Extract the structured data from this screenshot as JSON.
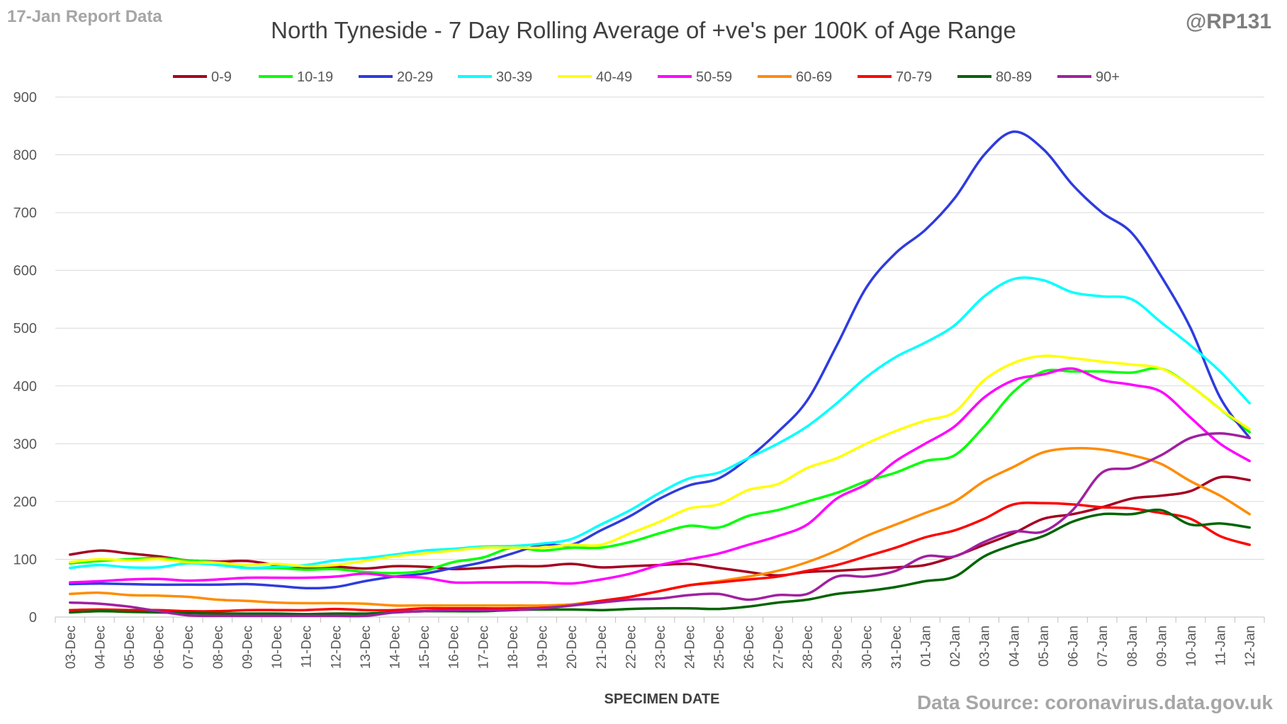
{
  "header": {
    "report_label": "17-Jan Report Data",
    "handle": "@RP131",
    "source": "Data Source: coronavirus.data.gov.uk"
  },
  "chart_data": {
    "type": "line",
    "title": "North Tyneside - 7 Day Rolling Average of +ve's per 100K of Age Range",
    "xlabel": "SPECIMEN DATE",
    "ylabel": "",
    "ylim": [
      0,
      900
    ],
    "yticks": [
      0,
      100,
      200,
      300,
      400,
      500,
      600,
      700,
      800,
      900
    ],
    "grid": "horizontal",
    "legend_position": "top",
    "categories": [
      "03-Dec",
      "04-Dec",
      "05-Dec",
      "06-Dec",
      "07-Dec",
      "08-Dec",
      "09-Dec",
      "10-Dec",
      "11-Dec",
      "12-Dec",
      "13-Dec",
      "14-Dec",
      "15-Dec",
      "16-Dec",
      "17-Dec",
      "18-Dec",
      "19-Dec",
      "20-Dec",
      "21-Dec",
      "22-Dec",
      "23-Dec",
      "24-Dec",
      "25-Dec",
      "26-Dec",
      "27-Dec",
      "28-Dec",
      "29-Dec",
      "30-Dec",
      "31-Dec",
      "01-Jan",
      "02-Jan",
      "03-Jan",
      "04-Jan",
      "05-Jan",
      "06-Jan",
      "07-Jan",
      "08-Jan",
      "09-Jan",
      "10-Jan",
      "11-Jan",
      "12-Jan"
    ],
    "series": [
      {
        "name": "0-9",
        "color": "#a50021",
        "values": [
          108,
          115,
          110,
          105,
          98,
          96,
          97,
          90,
          85,
          87,
          84,
          88,
          87,
          83,
          85,
          88,
          88,
          92,
          86,
          88,
          90,
          92,
          85,
          78,
          72,
          78,
          80,
          83,
          86,
          90,
          105,
          125,
          145,
          170,
          178,
          190,
          205,
          210,
          218,
          242,
          237
        ]
      },
      {
        "name": "10-19",
        "color": "#00ff00",
        "values": [
          93,
          97,
          100,
          102,
          98,
          94,
          85,
          85,
          82,
          83,
          78,
          76,
          80,
          95,
          103,
          120,
          115,
          120,
          120,
          130,
          145,
          158,
          155,
          175,
          185,
          200,
          215,
          235,
          250,
          270,
          280,
          330,
          390,
          425,
          425,
          425,
          423,
          430,
          400,
          360,
          320
        ]
      },
      {
        "name": "20-29",
        "color": "#2e3bde",
        "values": [
          57,
          58,
          57,
          56,
          56,
          56,
          57,
          54,
          50,
          52,
          62,
          70,
          75,
          85,
          95,
          110,
          125,
          125,
          150,
          175,
          205,
          228,
          240,
          275,
          320,
          375,
          470,
          570,
          630,
          670,
          725,
          800,
          840,
          810,
          748,
          700,
          665,
          590,
          500,
          380,
          310
        ]
      },
      {
        "name": "30-39",
        "color": "#00ffff",
        "values": [
          85,
          90,
          86,
          86,
          93,
          90,
          85,
          87,
          90,
          98,
          102,
          108,
          115,
          118,
          122,
          123,
          127,
          135,
          160,
          185,
          215,
          240,
          250,
          275,
          300,
          330,
          370,
          415,
          450,
          475,
          505,
          555,
          585,
          583,
          562,
          555,
          550,
          510,
          470,
          425,
          370
        ]
      },
      {
        "name": "40-49",
        "color": "#ffff00",
        "values": [
          95,
          100,
          98,
          100,
          95,
          94,
          90,
          92,
          88,
          90,
          97,
          105,
          110,
          115,
          120,
          120,
          120,
          125,
          125,
          145,
          165,
          188,
          195,
          220,
          230,
          258,
          275,
          300,
          322,
          340,
          355,
          410,
          440,
          452,
          448,
          442,
          437,
          430,
          400,
          360,
          325
        ]
      },
      {
        "name": "50-59",
        "color": "#ff00ff",
        "values": [
          60,
          62,
          65,
          66,
          63,
          65,
          68,
          68,
          68,
          70,
          75,
          70,
          68,
          60,
          60,
          60,
          60,
          58,
          65,
          75,
          90,
          100,
          110,
          125,
          140,
          160,
          205,
          230,
          270,
          300,
          330,
          380,
          410,
          420,
          430,
          410,
          402,
          390,
          345,
          300,
          270
        ]
      },
      {
        "name": "60-69",
        "color": "#ff8c00",
        "values": [
          40,
          42,
          38,
          37,
          35,
          30,
          28,
          25,
          24,
          24,
          23,
          20,
          20,
          20,
          20,
          20,
          20,
          22,
          28,
          35,
          45,
          55,
          62,
          70,
          80,
          95,
          115,
          140,
          160,
          180,
          200,
          235,
          260,
          285,
          292,
          290,
          280,
          265,
          235,
          210,
          178
        ]
      },
      {
        "name": "70-79",
        "color": "#ff0000",
        "values": [
          12,
          13,
          12,
          12,
          10,
          10,
          12,
          12,
          12,
          14,
          12,
          12,
          15,
          15,
          15,
          15,
          16,
          20,
          28,
          35,
          45,
          55,
          60,
          65,
          70,
          80,
          90,
          105,
          120,
          138,
          150,
          170,
          195,
          197,
          195,
          190,
          188,
          180,
          170,
          140,
          125
        ]
      },
      {
        "name": "80-89",
        "color": "#006400",
        "values": [
          8,
          10,
          9,
          8,
          7,
          6,
          6,
          6,
          5,
          6,
          6,
          8,
          10,
          10,
          10,
          12,
          13,
          13,
          12,
          14,
          15,
          15,
          14,
          18,
          25,
          30,
          40,
          45,
          52,
          62,
          70,
          105,
          125,
          140,
          165,
          178,
          178,
          185,
          160,
          162,
          155
        ]
      },
      {
        "name": "90+",
        "color": "#a020a0",
        "values": [
          25,
          23,
          18,
          10,
          3,
          2,
          2,
          2,
          2,
          2,
          2,
          8,
          10,
          12,
          12,
          12,
          15,
          20,
          25,
          30,
          32,
          38,
          40,
          30,
          38,
          40,
          70,
          70,
          80,
          105,
          105,
          130,
          148,
          148,
          185,
          250,
          258,
          280,
          310,
          318,
          310
        ]
      }
    ]
  }
}
